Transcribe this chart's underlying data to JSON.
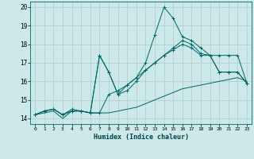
{
  "title": "",
  "xlabel": "Humidex (Indice chaleur)",
  "bg_color": "#cce8e8",
  "grid_color": "#aacccc",
  "line_color": "#006666",
  "xlim": [
    -0.5,
    23.5
  ],
  "ylim": [
    13.7,
    20.3
  ],
  "xticks": [
    0,
    1,
    2,
    3,
    4,
    5,
    6,
    7,
    8,
    9,
    10,
    11,
    12,
    13,
    14,
    15,
    16,
    17,
    18,
    19,
    20,
    21,
    22,
    23
  ],
  "yticks": [
    14,
    15,
    16,
    17,
    18,
    19,
    20
  ],
  "series": [
    {
      "x": [
        0,
        1,
        2,
        3,
        4,
        5,
        6,
        7,
        8,
        9,
        10,
        11,
        12,
        13,
        14,
        15,
        16,
        17,
        18,
        19,
        20,
        21,
        22,
        23
      ],
      "y": [
        14.2,
        14.4,
        14.5,
        14.2,
        14.4,
        14.4,
        14.3,
        14.3,
        15.3,
        15.5,
        15.8,
        16.2,
        16.6,
        17.0,
        17.4,
        17.8,
        18.2,
        18.0,
        17.5,
        17.4,
        16.5,
        16.5,
        16.5,
        15.9
      ],
      "marker": "+"
    },
    {
      "x": [
        0,
        1,
        2,
        3,
        4,
        5,
        6,
        7,
        8,
        9,
        10,
        11,
        12,
        13,
        14,
        15,
        16,
        17,
        18,
        19,
        20,
        21,
        22,
        23
      ],
      "y": [
        14.2,
        14.4,
        14.5,
        14.2,
        14.5,
        14.4,
        14.3,
        17.4,
        16.5,
        15.3,
        15.8,
        16.2,
        17.0,
        18.5,
        20.0,
        19.4,
        18.4,
        18.2,
        17.8,
        17.4,
        17.4,
        17.4,
        17.4,
        15.9
      ],
      "marker": "+"
    },
    {
      "x": [
        0,
        1,
        2,
        3,
        4,
        5,
        6,
        7,
        8,
        9,
        10,
        11,
        12,
        13,
        14,
        15,
        16,
        17,
        18,
        19,
        20,
        21,
        22,
        23
      ],
      "y": [
        14.2,
        14.4,
        14.5,
        14.2,
        14.4,
        14.4,
        14.3,
        17.4,
        16.5,
        15.3,
        15.5,
        16.0,
        16.6,
        17.0,
        17.4,
        17.7,
        18.0,
        17.8,
        17.4,
        17.4,
        16.5,
        16.5,
        16.5,
        15.9
      ],
      "marker": "+"
    },
    {
      "x": [
        0,
        1,
        2,
        3,
        4,
        5,
        6,
        7,
        8,
        9,
        10,
        11,
        12,
        13,
        14,
        15,
        16,
        17,
        18,
        19,
        20,
        21,
        22,
        23
      ],
      "y": [
        14.2,
        14.3,
        14.4,
        14.0,
        14.4,
        14.4,
        14.3,
        14.3,
        14.3,
        14.4,
        14.5,
        14.6,
        14.8,
        15.0,
        15.2,
        15.4,
        15.6,
        15.7,
        15.8,
        15.9,
        16.0,
        16.1,
        16.2,
        16.0
      ],
      "marker": null
    }
  ]
}
